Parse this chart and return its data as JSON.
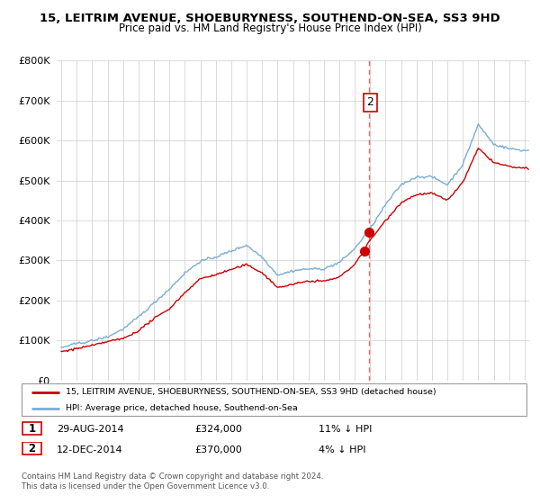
{
  "title": "15, LEITRIM AVENUE, SHOEBURYNESS, SOUTHEND-ON-SEA, SS3 9HD",
  "subtitle": "Price paid vs. HM Land Registry's House Price Index (HPI)",
  "hpi_label": "HPI: Average price, detached house, Southend-on-Sea",
  "property_label": "15, LEITRIM AVENUE, SHOEBURYNESS, SOUTHEND-ON-SEA, SS3 9HD (detached house)",
  "hpi_color": "#7aadd4",
  "property_color": "#cc0000",
  "dot_color": "#cc0000",
  "vline_color": "#dd4444",
  "transaction1_date": "29-AUG-2014",
  "transaction1_price": "£324,000",
  "transaction1_hpi": "11% ↓ HPI",
  "transaction2_date": "12-DEC-2014",
  "transaction2_price": "£370,000",
  "transaction2_hpi": "4% ↓ HPI",
  "footer": "Contains HM Land Registry data © Crown copyright and database right 2024.\nThis data is licensed under the Open Government Licence v3.0.",
  "ylim_min": 0,
  "ylim_max": 800000,
  "hpi_knots": [
    1995,
    1996,
    1997,
    1998,
    1999,
    2000,
    2001,
    2002,
    2003,
    2004,
    2005,
    2006,
    2007,
    2008,
    2009,
    2010,
    2011,
    2012,
    2013,
    2014,
    2015,
    2016,
    2017,
    2018,
    2019,
    2020,
    2021,
    2022,
    2023,
    2024,
    2025
  ],
  "hpi_values": [
    82000,
    92000,
    100000,
    110000,
    130000,
    160000,
    195000,
    230000,
    270000,
    300000,
    310000,
    325000,
    340000,
    310000,
    265000,
    275000,
    280000,
    280000,
    295000,
    330000,
    380000,
    440000,
    490000,
    510000,
    510000,
    490000,
    540000,
    640000,
    590000,
    580000,
    575000
  ],
  "prop_knots": [
    1995,
    1996,
    1997,
    1998,
    1999,
    2000,
    2001,
    2002,
    2003,
    2004,
    2005,
    2006,
    2007,
    2008,
    2009,
    2010,
    2011,
    2012,
    2013,
    2014,
    2015,
    2016,
    2017,
    2018,
    2019,
    2020,
    2021,
    2022,
    2023,
    2024,
    2025
  ],
  "prop_values": [
    72000,
    80000,
    88000,
    98000,
    105000,
    125000,
    155000,
    180000,
    220000,
    255000,
    265000,
    278000,
    290000,
    270000,
    232000,
    240000,
    248000,
    248000,
    258000,
    290000,
    350000,
    400000,
    445000,
    465000,
    468000,
    450000,
    495000,
    580000,
    545000,
    535000,
    530000
  ],
  "t1_year": 2014.66,
  "t2_year": 2014.95,
  "t1_price": 324000,
  "t2_price": 370000
}
